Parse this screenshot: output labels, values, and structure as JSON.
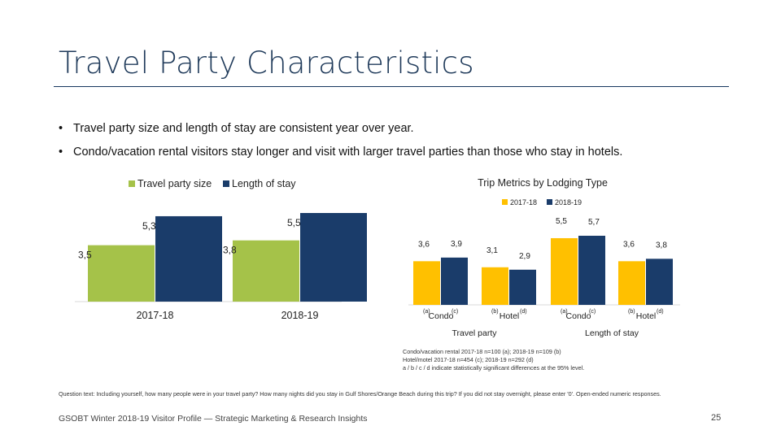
{
  "slide": {
    "title": "Travel Party Characteristics",
    "bullets": [
      "Travel party size and length of stay are consistent year over year.",
      "Condo/vacation rental visitors stay longer and visit with larger travel parties than those who stay in hotels."
    ],
    "notes": [
      "Condo/vacation rental 2017-18 n=100 (a); 2018-19 n=109 (b)",
      "Hotel/motel 2017-18 n=454 (c); 2018-19 n=292 (d)",
      "a / b / c / d indicate statistically significant differences at the 95% level."
    ],
    "question": "Question text: Including yourself, how many people were in your travel party? How many nights did you stay in Gulf Shores/Orange Beach during this trip? If you did not stay overnight, please enter '0'. Open-ended numeric responses.",
    "footer": "GSOBT Winter 2018-19 Visitor Profile — Strategic Marketing & Research Insights",
    "page_number": "25"
  },
  "colors": {
    "party_size": "#a5c249",
    "length_of_stay": "#1a3c6a",
    "y2017": "#ffc000",
    "y2018": "#1a3c6a",
    "title": "#1f3a5a"
  },
  "chart_data": [
    {
      "type": "bar",
      "title": "",
      "categories": [
        "2017-18",
        "2018-19"
      ],
      "series": [
        {
          "name": "Travel party size",
          "values": [
            3.5,
            3.8
          ],
          "labels": [
            "3,5",
            "3,8"
          ]
        },
        {
          "name": "Length of stay",
          "values": [
            5.3,
            5.5
          ],
          "labels": [
            "5,3",
            "5,5"
          ]
        }
      ],
      "ylim": [
        0,
        5.5
      ],
      "legend": "top-left"
    },
    {
      "type": "bar",
      "title": "Trip Metrics by Lodging Type",
      "groups": [
        {
          "name": "Travel party",
          "categories": [
            {
              "name": "Condo",
              "tags": [
                "(a)",
                "(c)"
              ],
              "values": [
                3.6,
                3.9
              ],
              "labels": [
                "3,6",
                "3,9"
              ]
            },
            {
              "name": "Hotel",
              "tags": [
                "(b)",
                "(d)"
              ],
              "values": [
                3.1,
                2.9
              ],
              "labels": [
                "3,1",
                "2,9"
              ]
            }
          ]
        },
        {
          "name": "Length of stay",
          "categories": [
            {
              "name": "Condo",
              "tags": [
                "(a)",
                "(c)"
              ],
              "values": [
                5.5,
                5.7
              ],
              "labels": [
                "5,5",
                "5,7"
              ]
            },
            {
              "name": "Hotel",
              "tags": [
                "(b)",
                "(d)"
              ],
              "values": [
                3.6,
                3.8
              ],
              "labels": [
                "3,6",
                "3,8"
              ]
            }
          ]
        }
      ],
      "series_names": [
        "2017-18",
        "2018-19"
      ],
      "ylim": [
        0,
        5.7
      ],
      "legend": "top"
    }
  ]
}
